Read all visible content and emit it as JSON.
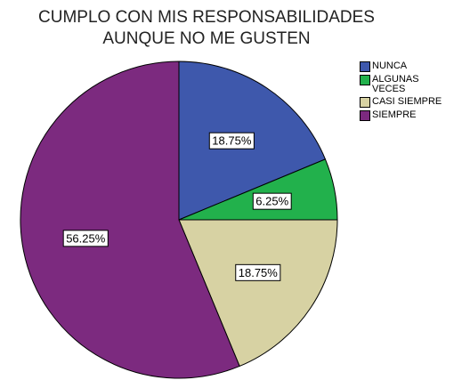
{
  "chart_data": {
    "type": "pie",
    "title": [
      "CUMPLO CON MIS RESPONSABILIDADES",
      "AUNQUE NO ME GUSTEN"
    ],
    "series": [
      {
        "name": "NUNCA",
        "color": "#3e58ac",
        "values": [
          18.75
        ],
        "value_labels": [
          "18.75%"
        ]
      },
      {
        "name": "ALGUNAS VECES",
        "color": "#22b14c",
        "values": [
          6.25
        ],
        "value_labels": [
          "6.25%"
        ]
      },
      {
        "name": "CASI SIEMPRE",
        "color": "#d7d2a3",
        "values": [
          18.75
        ],
        "value_labels": [
          "18.75%"
        ]
      },
      {
        "name": "SIEMPRE",
        "color": "#7c2a7f",
        "values": [
          56.25
        ],
        "value_labels": [
          "56.25%"
        ]
      }
    ],
    "legend": "right"
  }
}
